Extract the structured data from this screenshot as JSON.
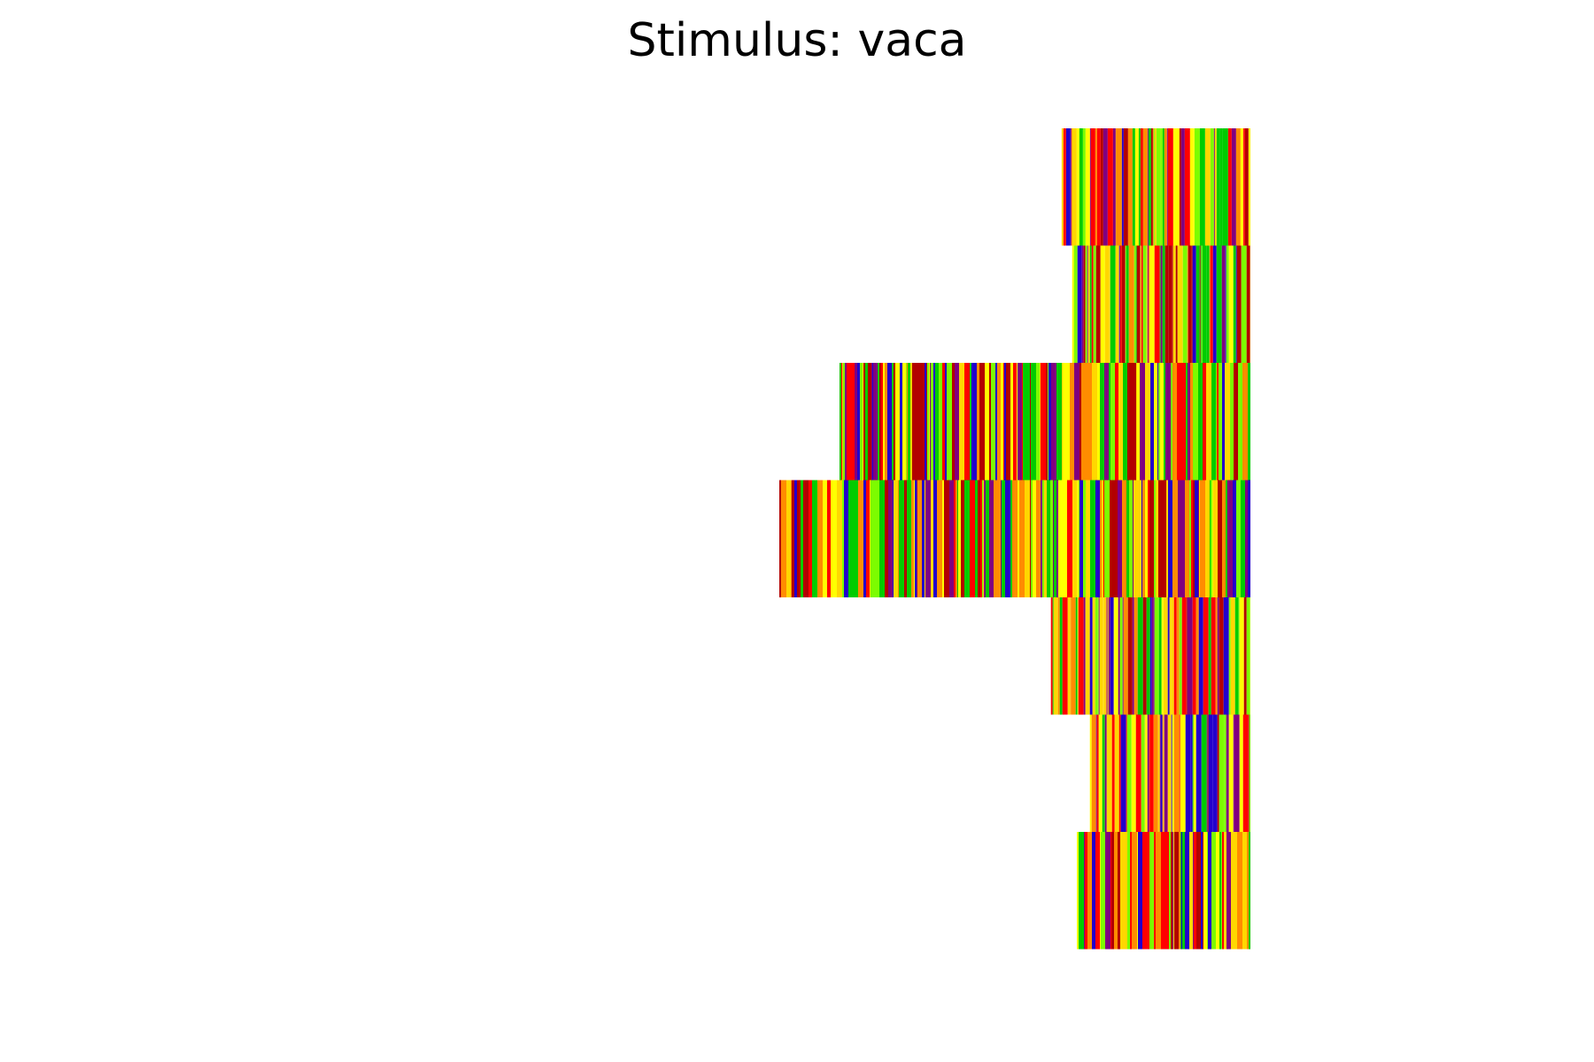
{
  "chart_data": {
    "type": "heatmap",
    "title": "Stimulus: vaca",
    "xlabel": "",
    "ylabel": "",
    "axes_visible": false,
    "grid": false,
    "x_domain": [
      0,
      1
    ],
    "palette": [
      "#ff0000",
      "#ff8c00",
      "#ffd700",
      "#ffff00",
      "#7cfc00",
      "#00cc00",
      "#800080",
      "#2200cc",
      "#b30000"
    ],
    "rows": [
      {
        "row": 1,
        "start": 0.7493,
        "end": 0.8825,
        "seed": 11
      },
      {
        "row": 2,
        "start": 0.7567,
        "end": 0.8825,
        "seed": 23
      },
      {
        "row": 3,
        "start": 0.5925,
        "end": 0.8825,
        "seed": 37
      },
      {
        "row": 4,
        "start": 0.55,
        "end": 0.8825,
        "seed": 41
      },
      {
        "row": 5,
        "start": 0.7417,
        "end": 0.8825,
        "seed": 53
      },
      {
        "row": 6,
        "start": 0.7692,
        "end": 0.8825,
        "seed": 67
      },
      {
        "row": 7,
        "start": 0.76,
        "end": 0.8825,
        "seed": 79
      }
    ]
  }
}
